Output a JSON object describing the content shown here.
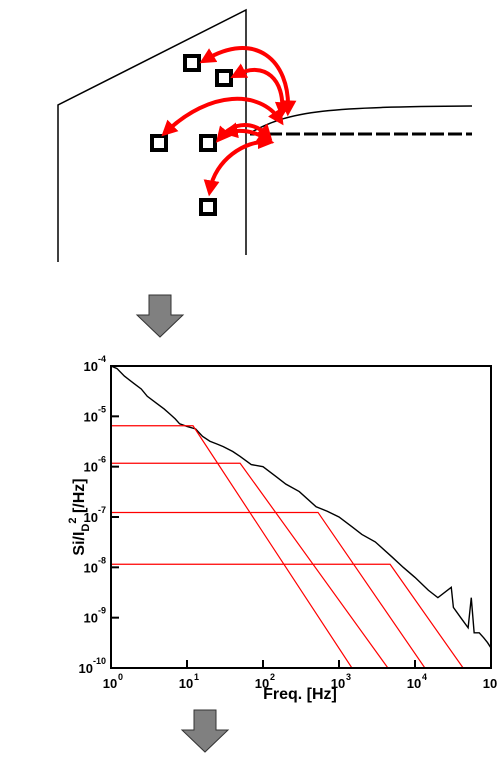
{
  "chart_data": {
    "type": "line",
    "xlog": true,
    "ylog": true,
    "x_label": "Freq. [Hz]",
    "y_label": {
      "text": "Si/I",
      "subscript": "D",
      "superscript": "2",
      "suffix": " [/Hz]"
    },
    "xlim": [
      1,
      100000
    ],
    "ylim": [
      1e-10,
      0.0001
    ],
    "xticks": [
      {
        "value": 1,
        "label": "10",
        "exponent": "0"
      },
      {
        "value": 10,
        "label": "10",
        "exponent": "1"
      },
      {
        "value": 100,
        "label": "10",
        "exponent": "2"
      },
      {
        "value": 1000,
        "label": "10",
        "exponent": "3"
      },
      {
        "value": 10000,
        "label": "10",
        "exponent": "4"
      },
      {
        "value": 100000,
        "label": "10"
      }
    ],
    "yticks": [
      {
        "value": 1e-10,
        "label": "10",
        "exponent": "-10"
      },
      {
        "value": 1e-09,
        "label": "10",
        "exponent": "-9"
      },
      {
        "value": 1e-08,
        "label": "10",
        "exponent": "-8"
      },
      {
        "value": 1e-07,
        "label": "10",
        "exponent": "-7"
      },
      {
        "value": 1e-06,
        "label": "10",
        "exponent": "-6"
      },
      {
        "value": 1e-05,
        "label": "10",
        "exponent": "-5"
      },
      {
        "value": 0.0001,
        "label": "10",
        "exponent": "-4"
      }
    ],
    "series": [
      {
        "color": "#000000",
        "x": [
          1,
          1.2,
          1.5,
          2,
          2.5,
          3,
          4,
          5,
          6,
          7,
          8,
          10,
          13,
          16,
          20,
          25,
          30,
          40,
          50,
          70,
          100,
          150,
          200,
          300,
          500,
          700,
          1000,
          1500,
          2000,
          3000,
          5000,
          7000,
          10000,
          15000,
          20000,
          30000,
          32000,
          40000,
          50000,
          55000,
          60000,
          70000,
          80000,
          90000,
          100000
        ],
        "values": [
          0.0001,
          8.9e-05,
          6.3e-05,
          4.5e-05,
          3.5e-05,
          2.5e-05,
          1.8e-05,
          1.4e-05,
          1.1e-05,
          8.9e-06,
          7.1e-06,
          6.3e-06,
          5.6e-06,
          4e-06,
          3.2e-06,
          2.8e-06,
          2.5e-06,
          2e-06,
          1.6e-06,
          1.1e-06,
          1e-06,
          6.3e-07,
          4.5e-07,
          3.2e-07,
          1.6e-07,
          1.3e-07,
          1e-07,
          6.3e-08,
          4.5e-08,
          3.2e-08,
          1.6e-08,
          1e-08,
          6.3e-09,
          3.5e-09,
          2.5e-09,
          4e-09,
          1.6e-09,
          1e-09,
          6.3e-10,
          2.5e-09,
          5e-10,
          5e-10,
          4e-10,
          3.2e-10,
          2.5e-10
        ]
      },
      {
        "color": "#ff0000",
        "x": [
          1,
          12,
          1480
        ],
        "values": [
          6.5e-06,
          6.5e-06,
          1e-10
        ]
      },
      {
        "color": "#ff0000",
        "x": [
          1,
          50,
          4400
        ],
        "values": [
          1.17e-06,
          1.17e-06,
          1e-10
        ]
      },
      {
        "color": "#ff0000",
        "x": [
          1,
          530,
          13500
        ],
        "values": [
          1.23e-07,
          1.23e-07,
          1e-10
        ]
      },
      {
        "color": "#ff0000",
        "x": [
          1,
          4700,
          43000
        ],
        "values": [
          1.15e-08,
          1.15e-08,
          1e-10
        ]
      }
    ]
  }
}
